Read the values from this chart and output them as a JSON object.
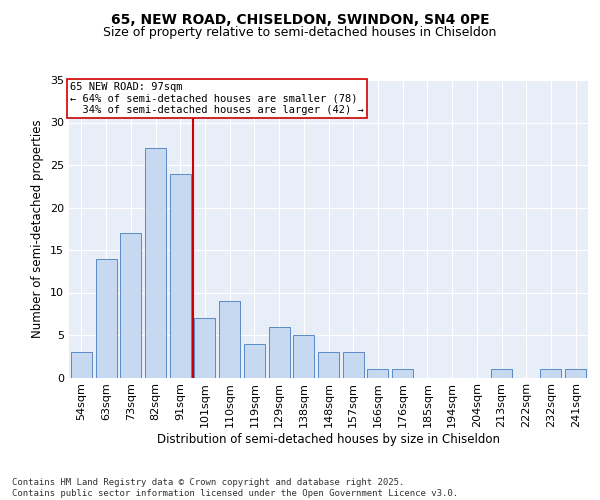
{
  "title1": "65, NEW ROAD, CHISELDON, SWINDON, SN4 0PE",
  "title2": "Size of property relative to semi-detached houses in Chiseldon",
  "xlabel": "Distribution of semi-detached houses by size in Chiseldon",
  "ylabel": "Number of semi-detached properties",
  "categories": [
    "54sqm",
    "63sqm",
    "73sqm",
    "82sqm",
    "91sqm",
    "101sqm",
    "110sqm",
    "119sqm",
    "129sqm",
    "138sqm",
    "148sqm",
    "157sqm",
    "166sqm",
    "176sqm",
    "185sqm",
    "194sqm",
    "204sqm",
    "213sqm",
    "222sqm",
    "232sqm",
    "241sqm"
  ],
  "values": [
    3,
    14,
    17,
    27,
    24,
    7,
    9,
    4,
    6,
    5,
    3,
    3,
    1,
    1,
    0,
    0,
    0,
    1,
    0,
    1,
    1
  ],
  "bar_color": "#c6d9f1",
  "bar_edge_color": "#5a8ac6",
  "reference_line_x": 4.5,
  "pct_smaller": 64,
  "pct_smaller_n": 78,
  "pct_larger": 34,
  "pct_larger_n": 42,
  "annotation_box_color": "#cc0000",
  "ylim": [
    0,
    35
  ],
  "yticks": [
    0,
    5,
    10,
    15,
    20,
    25,
    30,
    35
  ],
  "plot_bg_color": "#e8eef8",
  "footer": "Contains HM Land Registry data © Crown copyright and database right 2025.\nContains public sector information licensed under the Open Government Licence v3.0.",
  "title1_fontsize": 10,
  "title2_fontsize": 9,
  "xlabel_fontsize": 8.5,
  "ylabel_fontsize": 8.5,
  "tick_fontsize": 8,
  "footer_fontsize": 6.5
}
